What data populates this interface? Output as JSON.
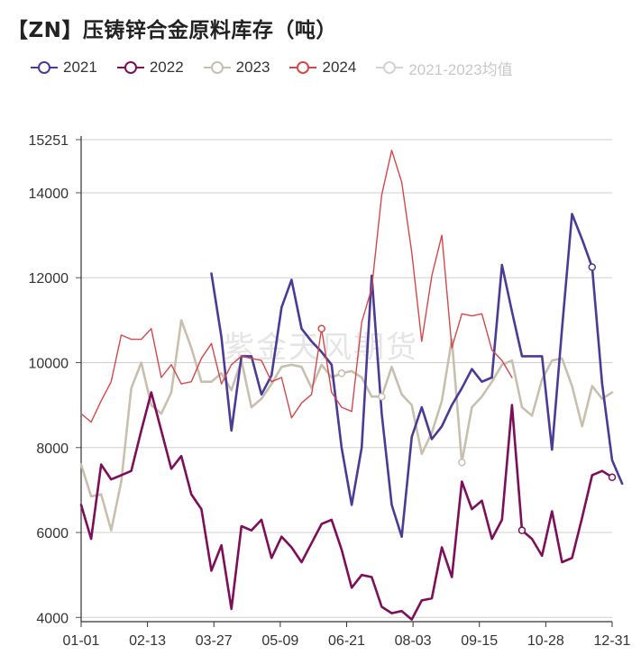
{
  "title": "【ZN】压铸锌合金原料库存（吨）",
  "watermark": "紫金天风期货",
  "legend": [
    {
      "label": "2021",
      "color": "#4b3a96"
    },
    {
      "label": "2022",
      "color": "#7d0f5a"
    },
    {
      "label": "2023",
      "color": "#c9bfae"
    },
    {
      "label": "2024",
      "color": "#d4484a"
    },
    {
      "label": "2021-2023均值",
      "color": "#d2d2d2"
    }
  ],
  "chart_data": {
    "type": "line",
    "title": "【ZN】压铸锌合金原料库存（吨）",
    "x_ticks": [
      "01-01",
      "02-13",
      "03-27",
      "05-09",
      "06-21",
      "08-03",
      "09-15",
      "10-28",
      "12-31"
    ],
    "y_ticks": [
      4000,
      6000,
      8000,
      10000,
      12000,
      14000,
      15251
    ],
    "ylim": [
      3900,
      15251
    ],
    "grid": true,
    "legend_position": "top",
    "series": [
      {
        "name": "2021",
        "color": "#4b3a96",
        "x": [
          13,
          14,
          15,
          16,
          17,
          18,
          19,
          20,
          21,
          22,
          23,
          24,
          25,
          26,
          27,
          28,
          29,
          30,
          31,
          32,
          33,
          34,
          35,
          36,
          37,
          38,
          39,
          40,
          41,
          42,
          43,
          44,
          45,
          46,
          47,
          48,
          49,
          50,
          51,
          52,
          53,
          54
        ],
        "values": [
          12100,
          10600,
          8400,
          10150,
          10150,
          9250,
          9700,
          11300,
          11950,
          10800,
          10500,
          10250,
          9950,
          8000,
          6650,
          8000,
          12050,
          8800,
          6650,
          5900,
          8250,
          8950,
          8200,
          8500,
          9000,
          9400,
          9850,
          9550,
          9650,
          12300,
          11200,
          10150,
          10150,
          10150,
          7950,
          10800,
          13500,
          12900,
          12250,
          9500,
          7700,
          7150
        ]
      },
      {
        "name": "2022",
        "color": "#7d0f5a",
        "x": [
          0,
          1,
          2,
          3,
          4,
          5,
          6,
          7,
          8,
          9,
          10,
          11,
          12,
          13,
          14,
          15,
          16,
          17,
          18,
          19,
          20,
          21,
          22,
          23,
          24,
          25,
          26,
          27,
          28,
          29,
          30,
          31,
          32,
          33,
          34,
          35,
          36,
          37,
          38,
          39,
          40,
          41,
          42,
          43,
          44,
          45,
          46,
          47,
          48,
          49,
          50,
          51,
          52,
          53
        ],
        "values": [
          6650,
          5850,
          7600,
          7250,
          7350,
          7450,
          8400,
          9300,
          8400,
          7500,
          7800,
          6900,
          6550,
          5100,
          5700,
          4200,
          6150,
          6050,
          6300,
          5400,
          5900,
          5650,
          5300,
          5750,
          6200,
          6300,
          5600,
          4700,
          5000,
          4950,
          4250,
          4100,
          4150,
          3950,
          4400,
          4450,
          5650,
          4950,
          7200,
          6550,
          6750,
          5850,
          6300,
          9000,
          6050,
          5850,
          5450,
          6500,
          5300,
          5400,
          6350,
          7350,
          7450,
          7300
        ]
      },
      {
        "name": "2023",
        "color": "#c9bfae",
        "x": [
          0,
          1,
          2,
          3,
          4,
          5,
          6,
          7,
          8,
          9,
          10,
          11,
          12,
          13,
          14,
          15,
          16,
          17,
          18,
          19,
          20,
          21,
          22,
          23,
          24,
          25,
          26,
          27,
          28,
          29,
          30,
          31,
          32,
          33,
          34,
          35,
          36,
          37,
          38,
          39,
          40,
          41,
          42,
          43,
          44,
          45,
          46,
          47,
          48,
          49,
          50,
          51,
          52,
          53
        ],
        "values": [
          7600,
          6850,
          6900,
          6050,
          7200,
          9400,
          10000,
          9000,
          8800,
          9300,
          11000,
          10350,
          9550,
          9550,
          9750,
          9350,
          10050,
          8950,
          9150,
          9500,
          9900,
          9950,
          9900,
          9400,
          9950,
          9650,
          9750,
          9800,
          9650,
          9200,
          9200,
          9900,
          9250,
          9000,
          7850,
          8350,
          9100,
          10550,
          7650,
          8950,
          9200,
          9550,
          9950,
          10050,
          8950,
          8750,
          9600,
          10050,
          10100,
          9450,
          8500,
          9450,
          9150,
          9300
        ]
      },
      {
        "name": "2024",
        "color": "#d4484a",
        "x": [
          0,
          1,
          2,
          3,
          4,
          5,
          6,
          7,
          8,
          9,
          10,
          11,
          12,
          13,
          14,
          15,
          16,
          17,
          18,
          19,
          20,
          21,
          22,
          23,
          24,
          25,
          26,
          27,
          28,
          29,
          30,
          31,
          32,
          33,
          34,
          35,
          36,
          37,
          38,
          39,
          40,
          41,
          42,
          43
        ],
        "values": [
          8800,
          8600,
          9100,
          9550,
          10650,
          10550,
          10550,
          10800,
          9650,
          9950,
          9500,
          9550,
          10100,
          10450,
          9500,
          9950,
          10150,
          10100,
          10050,
          9550,
          9650,
          8700,
          9050,
          9250,
          10800,
          9300,
          8950,
          8850,
          10950,
          11750,
          13950,
          15000,
          14250,
          12600,
          10500,
          12050,
          13000,
          10350,
          11150,
          11100,
          11150,
          10300,
          10050,
          9650
        ]
      },
      {
        "name": "2021-2023均值",
        "color": "#d2d2d2",
        "x": [
          0,
          1,
          2,
          3,
          4,
          5,
          6,
          7,
          8,
          9,
          10,
          11,
          12,
          13,
          14,
          15,
          16,
          17,
          18,
          19,
          20,
          21,
          22,
          23,
          24,
          25,
          26,
          27,
          28,
          29,
          30,
          31,
          32,
          33,
          34,
          35,
          36,
          37,
          38,
          39,
          40,
          41,
          42,
          43,
          44,
          45,
          46,
          47,
          48,
          49,
          50,
          51,
          52,
          53
        ],
        "values": [
          7150,
          6900,
          7300,
          6700,
          7300,
          8450,
          9200,
          9150,
          8950,
          8550,
          9200,
          8650,
          8050,
          8250,
          8550,
          8300,
          8750,
          8400,
          8450,
          8500,
          8750,
          8750,
          8500,
          7950,
          9050,
          8300,
          7950,
          7700,
          8300,
          8400,
          8050,
          8150,
          7950,
          7750,
          7450,
          7600,
          8650,
          8600,
          8450,
          8650,
          8700,
          8700,
          8450,
          8850,
          8600,
          8200,
          8200,
          8350,
          7800,
          7650,
          7700,
          7950,
          7900,
          7900
        ]
      }
    ]
  }
}
